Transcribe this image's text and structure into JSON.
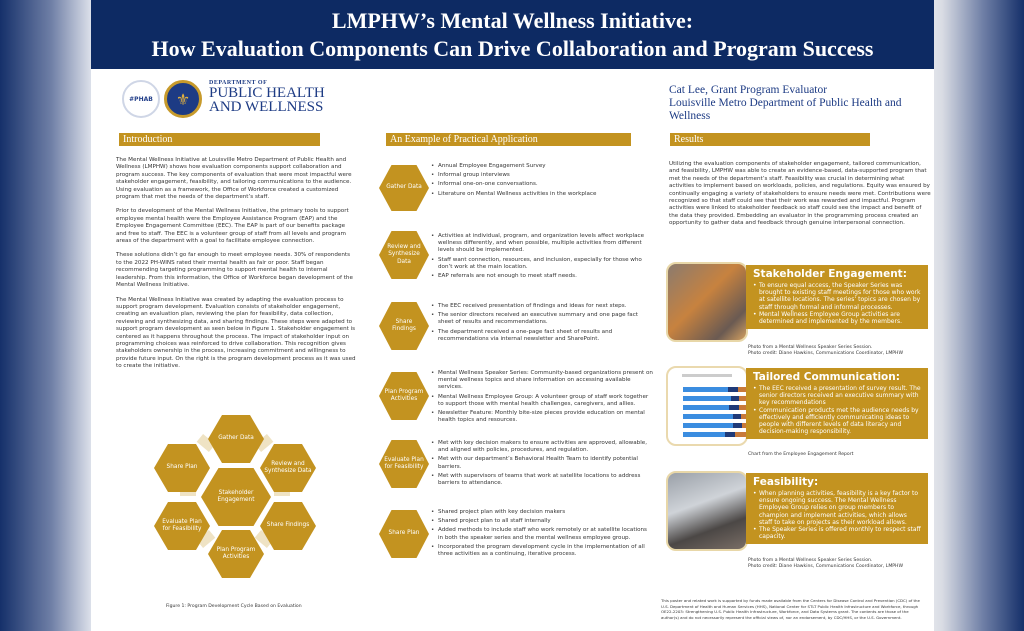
{
  "header": {
    "title_line1": "LMPHW’s Mental Wellness Initiative:",
    "title_line2": "How Evaluation Components Can Drive Collaboration and Program Success"
  },
  "logos": {
    "phab": "#PHAB",
    "dept_small": "DEPARTMENT OF",
    "dept_line1": "PUBLIC HEALTH",
    "dept_line2": "AND WELLNESS"
  },
  "author": {
    "name": "Cat Lee, Grant Program Evaluator",
    "org": "Louisville Metro Department of Public Health and Wellness"
  },
  "colors": {
    "navy": "#0d2a63",
    "gold": "#c39320"
  },
  "introduction": {
    "heading": "Introduction",
    "paragraphs": [
      "The Mental Wellness Initiative at Louisville Metro Department of Public Health and Wellness (LMPHW) shows how evaluation components support collaboration and program success. The key components of evaluation that were most impactful were stakeholder engagement, feasibility, and tailoring communications to the audience. Using evaluation as a framework, the Office of Workforce created a customized program that met the needs of the department’s staff.",
      "Prior to development of the Mental Wellness Initiative, the primary tools to support employee mental health were the Employee Assistance Program (EAP) and the Employee Engagement Committee (EEC). The EAP is part of our benefits package and free to staff. The EEC is a volunteer group of staff from all levels and program areas of the department with a goal to facilitate employee connection.",
      "These solutions didn’t go far enough to meet employee needs. 30% of respondents to the 2022 PH-WINS rated their mental health as fair or poor. Staff began recommending targeting programming to support mental health to internal leadership. From this information, the Office of Workforce began development of the Mental Wellness Initiative.",
      "The Mental Wellness Initiative was created by adapting the evaluation process to support program development. Evaluation consists of stakeholder engagement, creating an evaluation plan, reviewing the plan for feasibility, data collection, reviewing and synthesizing data, and sharing findings. These steps were adapted to support program development as seen below in Figure 1. Stakeholder engagement is centered as it happens throughout the process. The impact of stakeholder input on programming choices was reinforced to drive collaboration. This recognition gives stakeholders ownership in the process, increasing commitment and willingness to provide future input. On the right is the program development process as it was used to create the initiative."
    ],
    "cycle": {
      "center": "Stakeholder Engagement",
      "gather": "Gather Data",
      "review": "Review and Synthesize Data",
      "share_findings": "Share Findings",
      "plan": "Plan Program Activities",
      "evaluate": "Evaluate Plan for Feasibility",
      "share_plan": "Share Plan"
    },
    "figure_caption": "Figure 1: Program Development Cycle Based on Evaluation"
  },
  "application": {
    "heading": "An Example of Practical Application",
    "steps": [
      {
        "label": "Gather Data",
        "bullets": [
          "Annual Employee Engagement Survey",
          "Informal group interviews",
          "Informal one-on-one conversations.",
          "Literature on Mental Wellness activities in the workplace"
        ]
      },
      {
        "label": "Review and Synthesize Data",
        "bullets": [
          "Activities at individual, program, and organization levels affect workplace wellness differently, and when possible, multiple activities from different levels should be implemented.",
          "Staff want connection, resources, and inclusion, especially for those who don’t work at the main location.",
          "EAP referrals are not enough to meet staff needs."
        ]
      },
      {
        "label": "Share Findings",
        "bullets": [
          "The EEC received presentation of findings and ideas for next steps.",
          "The senior directors received an executive summary and one page fact sheet of results and recommendations.",
          "The department received a one-page fact sheet of results and recommendations via internal newsletter and SharePoint."
        ]
      },
      {
        "label": "Plan Program Activities",
        "bullets": [
          "Mental Wellness Speaker Series: Community-based organizations present on mental wellness topics and share information on accessing available services.",
          "Mental Wellness Employee Group: A volunteer group of staff work together to support those with mental health challenges, caregivers, and allies.",
          "Newsletter Feature: Monthly bite-size pieces provide education on mental health topics and resources."
        ]
      },
      {
        "label": "Evaluate Plan for Feasibility",
        "bullets": [
          "Met with key decision makers to ensure activities are approved, allowable, and aligned with policies, procedures, and regulation.",
          "Met with our department’s Behavioral Health Team to identify potential barriers.",
          "Met with supervisors of teams that work at satellite locations to address barriers to attendance."
        ]
      },
      {
        "label": "Share Plan",
        "bullets": [
          "Shared project plan with key decision makers",
          "Shared project plan to all staff internally",
          "Added methods to include staff who work remotely or at satellite locations in both the speaker series and the mental wellness employee group.",
          "Incorporated the program development cycle in the implementation of all three activities as a continuing, iterative process."
        ]
      }
    ]
  },
  "results": {
    "heading": "Results",
    "summary": "Utilizing the evaluation components of stakeholder engagement, tailored communication, and feasibility, LMPHW was able to create an evidence-based, data-supported program that met the needs of the department’s staff. Feasibility was crucial in determining what activities to implement based on workloads, policies, and regulations. Equity was ensured by continually engaging a variety of stakeholders to ensure needs were met. Contributions were recognized so that staff could see that their work was rewarded and impactful. Program activities were linked to stakeholder feedback so staff could see the impact and benefit of the data they provided. Embedding an evaluator in the programming process created an opportunity to gather data and feedback through genuine interpersonal connection.",
    "stakeholder": {
      "title": "Stakeholder Engagement:",
      "bullets": [
        "To ensure equal access, the Speaker Series was brought to existing staff meetings for those who work at satellite locations. The series’ topics are chosen by staff through formal and informal processes.",
        "Mental Wellness Employee Group activities are determined and implemented by the members."
      ],
      "caption1": "Photo from a Mental Wellness Speaker Series Session.",
      "caption2": "Photo credit: Diane Hawkins, Communications Coordinator, LMPHW"
    },
    "tailored": {
      "title": "Tailored Communication:",
      "bullets": [
        "The EEC received a presentation of survey result. The senior directors received an executive summary with key recommendations",
        "Communication products met the audience needs by effectively and efficiently communicating ideas to people with different levels of data literacy and decision-making responsibility."
      ],
      "caption": "Chart from the Employee Engagement Report"
    },
    "feasibility": {
      "title": "Feasibility:",
      "bullets": [
        "When planning activities, feasibility is a key factor to ensure ongoing success. The Mental Wellness Employee Group relies on group members to champion and implement activities, which allows staff to take on projects as their workload allows.",
        "The Speaker Series is offered monthly to respect staff capacity."
      ],
      "caption1": "Photo from a Mental Wellness Speaker Series Session.",
      "caption2": "Photo credit: Diane Hawkins, Communications Coordinator, LMPHW"
    }
  },
  "footer": "This poster and related work is supported by funds made available from the Centers for Disease Control and Prevention (CDC) of the U.S. Department of Health and Human Services (HHS), National Center for STLT Public Health Infrastructure and Workforce, through OE22-2203: Strengthening U.S. Public Health Infrastructure, Workforce, and Data Systems grant. The contents are those of the author(s) and do not necessarily represent the official views of, nor an endorsement, by CDC/HHS, or the U.S. Government."
}
